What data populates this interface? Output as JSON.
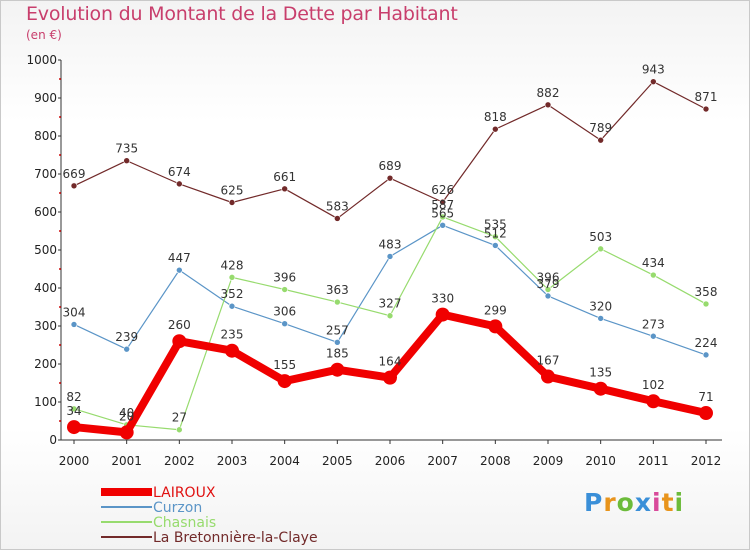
{
  "title": "Evolution du Montant de la Dette par Habitant",
  "subtitle": "(en €)",
  "logo": {
    "text": "Proxiti",
    "colors": [
      "#3a8fd8",
      "#e8941c",
      "#6cbb3a",
      "#3a8fd8",
      "#d94a9a",
      "#e8941c",
      "#6cbb3a"
    ]
  },
  "chart_data": {
    "type": "line",
    "x": [
      "2000",
      "2001",
      "2002",
      "2003",
      "2004",
      "2005",
      "2006",
      "2007",
      "2008",
      "2009",
      "2010",
      "2011",
      "2012"
    ],
    "ylim": [
      0,
      1000
    ],
    "yticks": [
      "0",
      "100",
      "200",
      "300",
      "400",
      "500",
      "600",
      "700",
      "800",
      "900",
      "1000"
    ],
    "grid": false,
    "legend_position": "bottom-left",
    "series": [
      {
        "name": "La Bretonnière-la-Claye",
        "color": "#722a2a",
        "values": [
          669,
          735,
          674,
          625,
          661,
          583,
          689,
          626,
          818,
          882,
          789,
          943,
          871
        ],
        "labels": [
          "669",
          "735",
          "674",
          "625",
          "661",
          "583",
          "689",
          "626",
          "818",
          "882",
          "789",
          "943",
          "871"
        ]
      },
      {
        "name": "Curzon",
        "color": "#5b95c7",
        "values": [
          304,
          239,
          447,
          352,
          306,
          257,
          483,
          565,
          512,
          379,
          320,
          273,
          224
        ],
        "labels": [
          "304",
          "239",
          "447",
          "352",
          "306",
          "257",
          "483",
          "565",
          "512",
          "379",
          "320",
          "273",
          "224"
        ]
      },
      {
        "name": "Chasnais",
        "color": "#97db6e",
        "values": [
          82,
          40,
          27,
          428,
          396,
          363,
          327,
          587,
          535,
          396,
          503,
          434,
          358
        ],
        "labels": [
          "82",
          "40",
          "27",
          "428",
          "396",
          "363",
          "327",
          "587",
          "535",
          "396",
          "503",
          "434",
          "358"
        ]
      },
      {
        "name": "LAIROUX",
        "color": "#f00000",
        "values": [
          34,
          20,
          260,
          235,
          155,
          185,
          164,
          330,
          299,
          167,
          135,
          102,
          71
        ],
        "labels": [
          "34",
          "20",
          "260",
          "235",
          "155",
          "185",
          "164",
          "330",
          "299",
          "167",
          "135",
          "102",
          "71"
        ]
      }
    ]
  },
  "legend": [
    {
      "label": "LAIROUX",
      "color": "#f00000",
      "thick": true
    },
    {
      "label": "Curzon",
      "color": "#5b95c7",
      "thick": false
    },
    {
      "label": "Chasnais",
      "color": "#97db6e",
      "thick": false
    },
    {
      "label": "La Bretonnière-la-Claye",
      "color": "#722a2a",
      "thick": false
    }
  ]
}
